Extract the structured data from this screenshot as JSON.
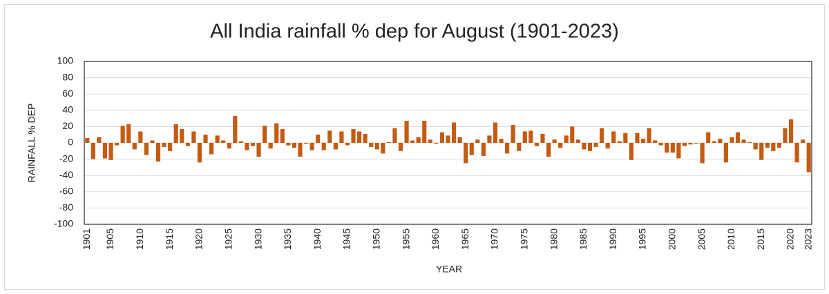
{
  "chart_data": {
    "type": "bar",
    "title": "All India rainfall % dep for August (1901-2023)",
    "x_label": "YEAR",
    "y_label": "RAINFALL % DEP",
    "color": "#c55a11",
    "grid": true,
    "ylim": [
      -100,
      100
    ],
    "yticks": [
      -100,
      -80,
      -60,
      -40,
      -20,
      0,
      20,
      40,
      60,
      80,
      100
    ],
    "categories": [
      "1901",
      null,
      null,
      null,
      "1905",
      null,
      null,
      null,
      null,
      "1910",
      null,
      null,
      null,
      null,
      "1915",
      null,
      null,
      null,
      null,
      "1920",
      null,
      null,
      null,
      null,
      "1925",
      null,
      null,
      null,
      null,
      "1930",
      null,
      null,
      null,
      null,
      "1935",
      null,
      null,
      null,
      null,
      "1940",
      null,
      null,
      null,
      null,
      "1945",
      null,
      null,
      null,
      null,
      "1950",
      null,
      null,
      null,
      null,
      "1955",
      null,
      null,
      null,
      null,
      "1960",
      null,
      null,
      null,
      null,
      "1965",
      null,
      null,
      null,
      null,
      "1970",
      null,
      null,
      null,
      null,
      "1975",
      null,
      null,
      null,
      null,
      "1980",
      null,
      null,
      null,
      null,
      "1985",
      null,
      null,
      null,
      null,
      "1990",
      null,
      null,
      null,
      null,
      "1995",
      null,
      null,
      null,
      null,
      "2000",
      null,
      null,
      null,
      null,
      "2005",
      null,
      null,
      null,
      null,
      "2010",
      null,
      null,
      null,
      null,
      "2015",
      null,
      null,
      null,
      null,
      "2020",
      null,
      null,
      "2023"
    ],
    "values": [
      6,
      -20,
      7,
      -19,
      -21,
      -3,
      21,
      23,
      -8,
      14,
      -15,
      3,
      -23,
      -5,
      -10,
      23,
      17,
      -4,
      14,
      -24,
      10,
      -14,
      9,
      3,
      -7,
      33,
      2,
      -9,
      -4,
      -17,
      21,
      -7,
      24,
      17,
      -3,
      -6,
      -17,
      -1,
      -9,
      10,
      -9,
      15,
      -8,
      14,
      -3,
      17,
      14,
      11,
      -5,
      -8,
      -13,
      1,
      18,
      -10,
      27,
      3,
      7,
      27,
      4,
      -1,
      13,
      9,
      25,
      7,
      -25,
      -15,
      4,
      -16,
      9,
      25,
      5,
      -13,
      22,
      -10,
      14,
      15,
      -4,
      11,
      -17,
      4,
      -6,
      9,
      20,
      4,
      -8,
      -10,
      -5,
      18,
      -7,
      14,
      2,
      12,
      -21,
      12,
      5,
      18,
      3,
      -3,
      -12,
      -12,
      -19,
      -4,
      -2,
      -1,
      -25,
      13,
      2,
      5,
      -24,
      7,
      13,
      4,
      1,
      -8,
      -21,
      -6,
      -10,
      -6,
      18,
      29,
      -24,
      4,
      -36
    ]
  }
}
